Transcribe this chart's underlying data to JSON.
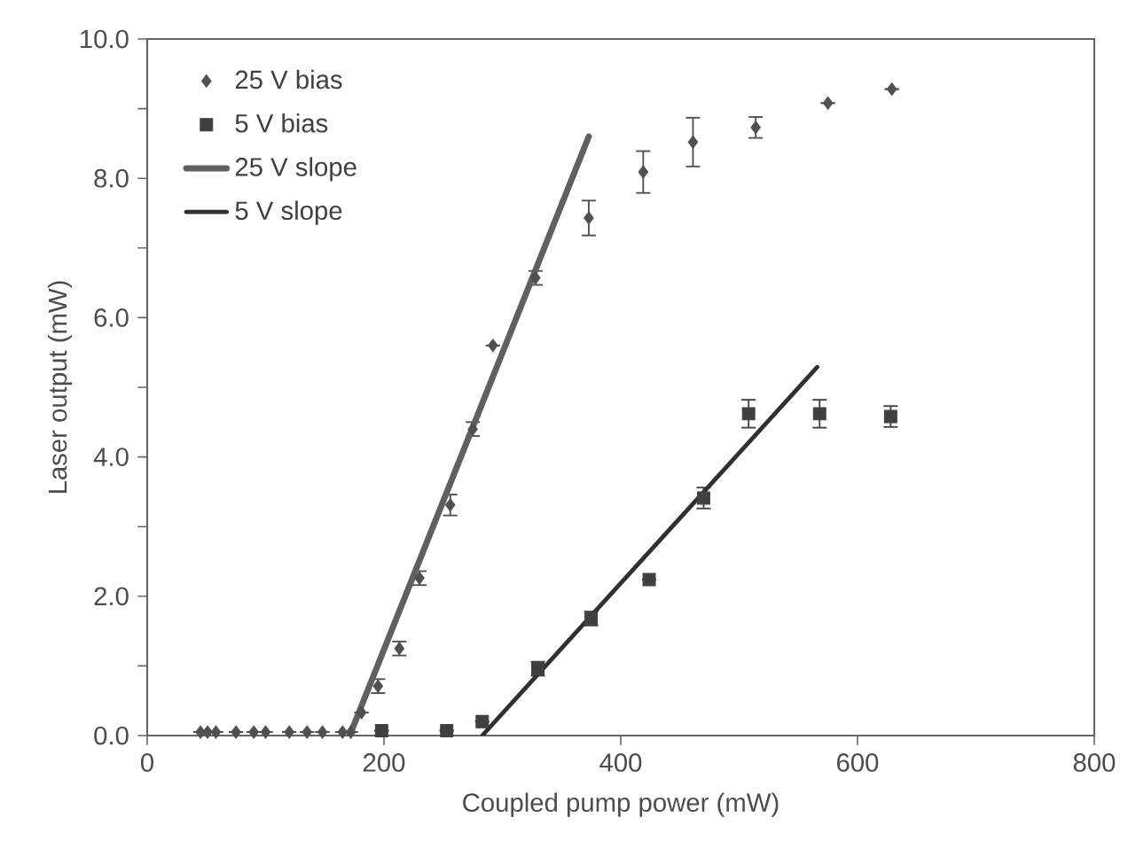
{
  "chart_data": {
    "type": "scatter",
    "xlabel": "Coupled pump power (mW)",
    "ylabel": "Laser output (mW)",
    "xlim": [
      0,
      800
    ],
    "xticks": [
      0,
      200,
      400,
      600,
      800
    ],
    "ylim": [
      0,
      10
    ],
    "yticks": [
      {
        "value": 0,
        "label": "0.0"
      },
      {
        "value": 1,
        "label": null
      },
      {
        "value": 2,
        "label": "2.0"
      },
      {
        "value": 3,
        "label": null
      },
      {
        "value": 4,
        "label": "4.0"
      },
      {
        "value": 5,
        "label": null
      },
      {
        "value": 6,
        "label": "6.0"
      },
      {
        "value": 7,
        "label": null
      },
      {
        "value": 8,
        "label": "8.0"
      },
      {
        "value": 9,
        "label": null
      },
      {
        "value": 10,
        "label": "10.0"
      }
    ],
    "grid": false,
    "legend": "top left",
    "series": [
      {
        "name": "25 V bias",
        "marker": "diamond",
        "color": "#505050",
        "x": [
          45,
          51,
          58,
          75,
          90,
          100,
          120,
          135,
          148,
          165,
          172,
          181,
          195,
          213,
          230,
          256,
          275,
          292,
          328,
          373,
          419,
          461,
          514,
          575,
          629
        ],
        "values": [
          0.05,
          0.05,
          0.05,
          0.05,
          0.05,
          0.05,
          0.05,
          0.05,
          0.05,
          0.05,
          0.05,
          0.33,
          0.71,
          1.25,
          2.26,
          3.31,
          4.4,
          5.6,
          6.57,
          7.43,
          8.09,
          8.52,
          8.73,
          9.08,
          9.28
        ],
        "errors": [
          null,
          null,
          null,
          null,
          null,
          null,
          null,
          null,
          null,
          null,
          null,
          null,
          0.1,
          0.1,
          0.1,
          0.15,
          0.1,
          null,
          0.1,
          0.25,
          0.3,
          0.35,
          0.15,
          null,
          null
        ]
      },
      {
        "name": "5 V bias",
        "marker": "square",
        "color": "#404040",
        "x": [
          198,
          253,
          283,
          330,
          375,
          424,
          470,
          508,
          568,
          628
        ],
        "values": [
          0.07,
          0.07,
          0.2,
          0.96,
          1.68,
          2.24,
          3.41,
          4.62,
          4.62,
          4.58
        ],
        "errors": [
          null,
          null,
          null,
          0.1,
          0.1,
          null,
          0.15,
          0.2,
          0.2,
          0.15
        ]
      },
      {
        "name": "25 V slope",
        "type": "line",
        "color": "#606060",
        "x": [
          171,
          373
        ],
        "values": [
          0,
          8.6
        ]
      },
      {
        "name": "5 V slope",
        "type": "line",
        "color": "#303030",
        "x": [
          283,
          566
        ],
        "values": [
          0,
          5.29
        ]
      }
    ]
  }
}
